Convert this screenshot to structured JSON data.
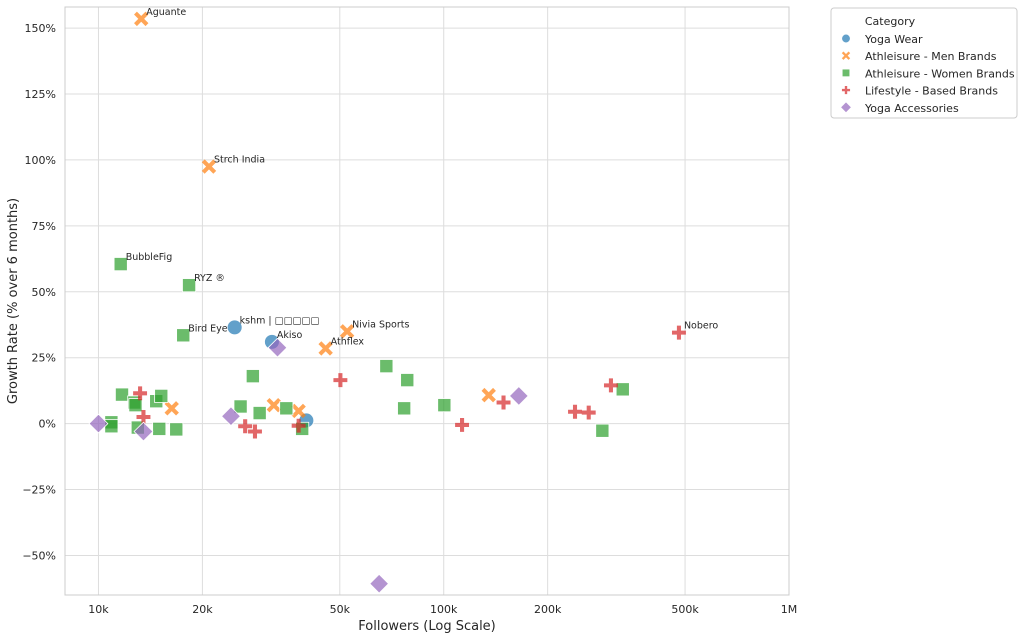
{
  "chart_data": {
    "type": "scatter",
    "title": "",
    "xlabel": "Followers (Log Scale)",
    "ylabel": "Growth Rate (% over 6 months)",
    "x_scale": "log",
    "xlim": [
      8000,
      1000000
    ],
    "ylim": [
      -0.65,
      1.58
    ],
    "x_ticks": [
      {
        "value": 10000,
        "label": "10k"
      },
      {
        "value": 20000,
        "label": "20k"
      },
      {
        "value": 50000,
        "label": "50k"
      },
      {
        "value": 100000,
        "label": "100k"
      },
      {
        "value": 200000,
        "label": "200k"
      },
      {
        "value": 500000,
        "label": "500k"
      },
      {
        "value": 1000000,
        "label": "1M"
      }
    ],
    "y_ticks": [
      {
        "value": 1.5,
        "label": "150%"
      },
      {
        "value": 1.25,
        "label": "125%"
      },
      {
        "value": 1.0,
        "label": "100%"
      },
      {
        "value": 0.75,
        "label": "75%"
      },
      {
        "value": 0.5,
        "label": "50%"
      },
      {
        "value": 0.25,
        "label": "25%"
      },
      {
        "value": 0.0,
        "label": "0%"
      },
      {
        "value": -0.25,
        "label": "−25%"
      },
      {
        "value": -0.5,
        "label": "−50%"
      }
    ],
    "grid": true,
    "legend": {
      "title": "Category",
      "position": "outside-right-top"
    },
    "series": [
      {
        "name": "Yoga Wear",
        "color": "#1f77b4",
        "marker": "circle",
        "points": [
          {
            "x": 24800,
            "y": 0.365,
            "label": "kshm | □□□□□"
          },
          {
            "x": 31800,
            "y": 0.31,
            "label": "Akiso"
          },
          {
            "x": 40000,
            "y": 0.012,
            "label": ""
          }
        ]
      },
      {
        "name": "Athleisure - Men Brands",
        "color": "#ff7f0e",
        "marker": "x",
        "points": [
          {
            "x": 13300,
            "y": 1.535,
            "label": "Aguante"
          },
          {
            "x": 20900,
            "y": 0.975,
            "label": "Strch India"
          },
          {
            "x": 52500,
            "y": 0.35,
            "label": "Nivia Sports"
          },
          {
            "x": 45500,
            "y": 0.285,
            "label": "Athflex"
          },
          {
            "x": 16300,
            "y": 0.058,
            "label": ""
          },
          {
            "x": 32200,
            "y": 0.07,
            "label": ""
          },
          {
            "x": 38000,
            "y": 0.048,
            "label": ""
          },
          {
            "x": 135000,
            "y": 0.108,
            "label": ""
          }
        ]
      },
      {
        "name": "Athleisure - Women Brands",
        "color": "#2ca02c",
        "marker": "square",
        "points": [
          {
            "x": 11600,
            "y": 0.605,
            "label": "BubbleFig"
          },
          {
            "x": 18300,
            "y": 0.525,
            "label": "RYZ ®"
          },
          {
            "x": 17600,
            "y": 0.335,
            "label": "Bird Eye"
          },
          {
            "x": 11700,
            "y": 0.11,
            "label": ""
          },
          {
            "x": 10900,
            "y": 0.005,
            "label": ""
          },
          {
            "x": 10900,
            "y": -0.01,
            "label": ""
          },
          {
            "x": 12700,
            "y": 0.08,
            "label": ""
          },
          {
            "x": 12800,
            "y": 0.07,
            "label": ""
          },
          {
            "x": 13000,
            "y": -0.015,
            "label": ""
          },
          {
            "x": 14700,
            "y": 0.085,
            "label": ""
          },
          {
            "x": 15200,
            "y": 0.105,
            "label": ""
          },
          {
            "x": 15000,
            "y": -0.02,
            "label": ""
          },
          {
            "x": 16800,
            "y": -0.022,
            "label": ""
          },
          {
            "x": 25800,
            "y": 0.065,
            "label": ""
          },
          {
            "x": 28000,
            "y": 0.18,
            "label": ""
          },
          {
            "x": 29300,
            "y": 0.04,
            "label": ""
          },
          {
            "x": 35000,
            "y": 0.058,
            "label": ""
          },
          {
            "x": 38900,
            "y": -0.02,
            "label": ""
          },
          {
            "x": 68200,
            "y": 0.218,
            "label": ""
          },
          {
            "x": 78400,
            "y": 0.165,
            "label": ""
          },
          {
            "x": 76800,
            "y": 0.058,
            "label": ""
          },
          {
            "x": 100400,
            "y": 0.07,
            "label": ""
          },
          {
            "x": 288000,
            "y": -0.027,
            "label": ""
          },
          {
            "x": 330000,
            "y": 0.13,
            "label": ""
          }
        ]
      },
      {
        "name": "Lifestyle - Based Brands",
        "color": "#d62728",
        "marker": "plus",
        "points": [
          {
            "x": 480000,
            "y": 0.345,
            "label": "Nobero"
          },
          {
            "x": 13200,
            "y": 0.115,
            "label": ""
          },
          {
            "x": 13500,
            "y": 0.025,
            "label": ""
          },
          {
            "x": 26600,
            "y": -0.01,
            "label": ""
          },
          {
            "x": 28400,
            "y": -0.03,
            "label": ""
          },
          {
            "x": 38000,
            "y": -0.008,
            "label": ""
          },
          {
            "x": 50200,
            "y": 0.165,
            "label": ""
          },
          {
            "x": 113000,
            "y": -0.005,
            "label": ""
          },
          {
            "x": 149000,
            "y": 0.08,
            "label": ""
          },
          {
            "x": 240000,
            "y": 0.045,
            "label": ""
          },
          {
            "x": 263000,
            "y": 0.042,
            "label": ""
          },
          {
            "x": 305000,
            "y": 0.145,
            "label": ""
          }
        ]
      },
      {
        "name": "Yoga Accessories",
        "color": "#9467bd",
        "marker": "diamond",
        "points": [
          {
            "x": 33000,
            "y": 0.288,
            "label": ""
          },
          {
            "x": 10000,
            "y": 0.0,
            "label": ""
          },
          {
            "x": 13500,
            "y": -0.03,
            "label": ""
          },
          {
            "x": 24200,
            "y": 0.028,
            "label": ""
          },
          {
            "x": 165000,
            "y": 0.105,
            "label": ""
          },
          {
            "x": 65000,
            "y": -0.607,
            "label": ""
          }
        ]
      }
    ]
  }
}
